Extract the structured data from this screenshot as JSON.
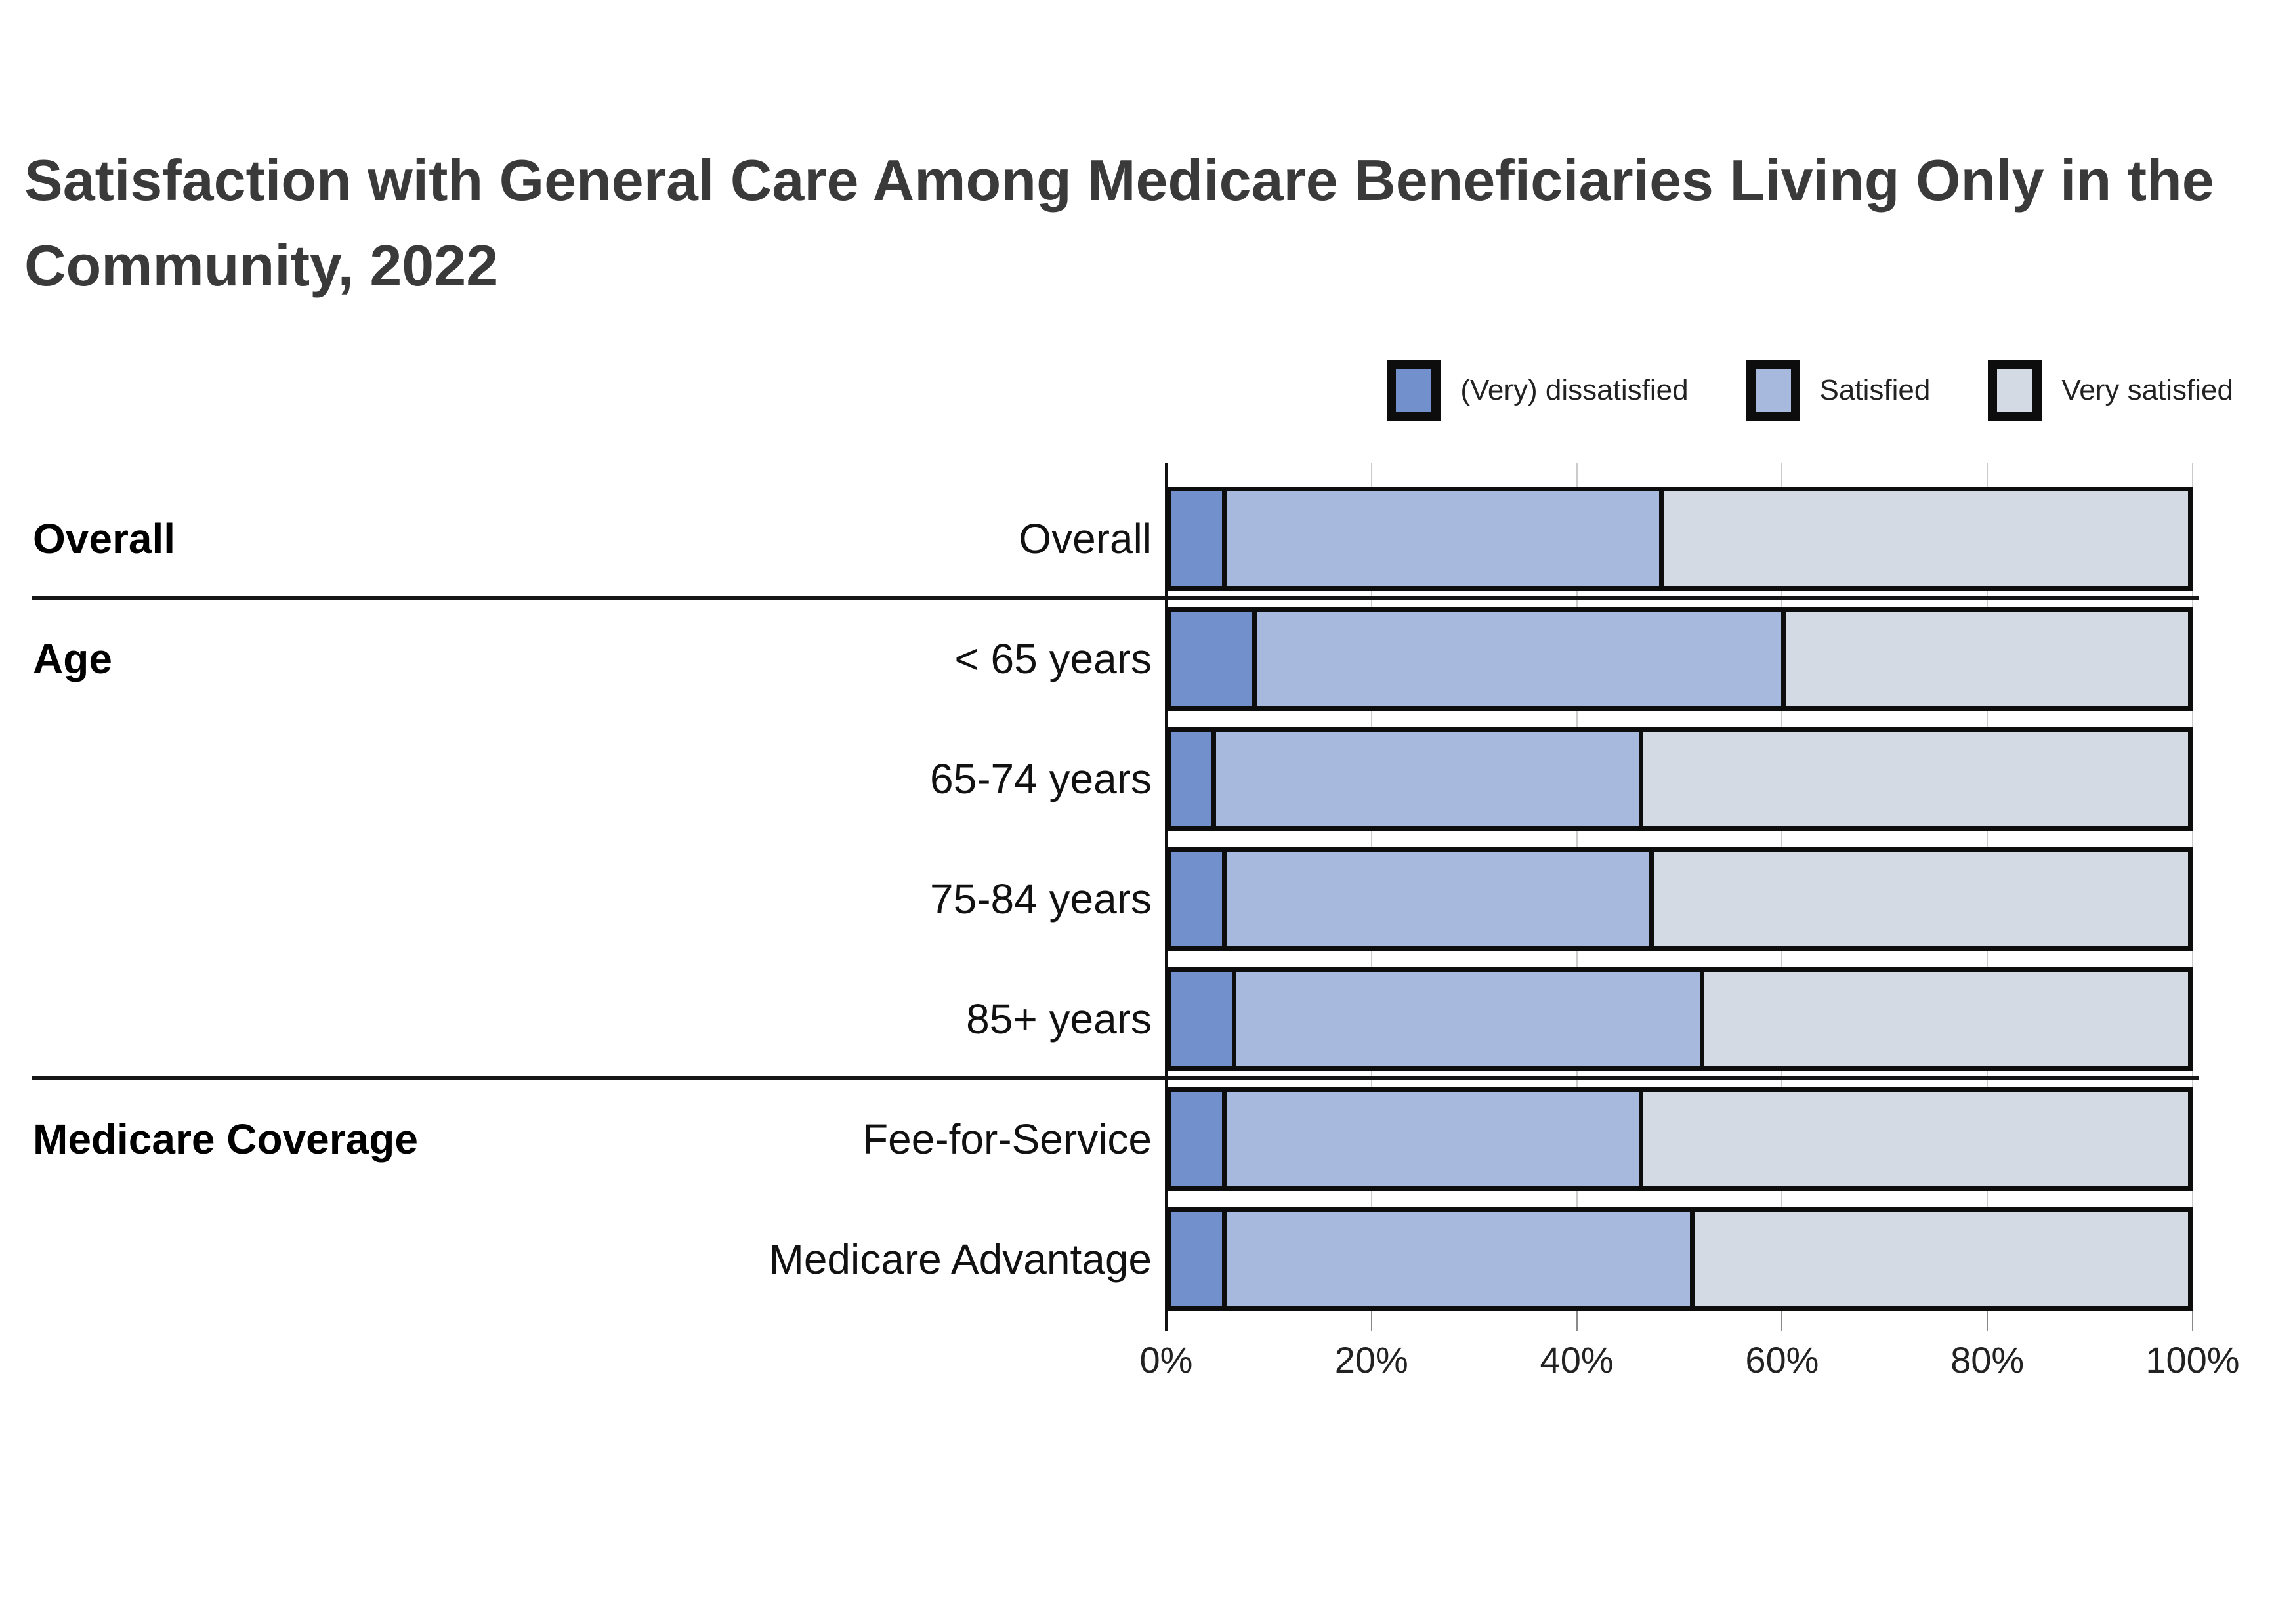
{
  "title": "Satisfaction with General Care Among Medicare Beneficiaries Living Only in the Community, 2022",
  "legend": [
    {
      "label": "(Very) dissatisfied",
      "color": "#7291CC"
    },
    {
      "label": "Satisfied",
      "color": "#A7B9DC"
    },
    {
      "label": "Very satisfied",
      "color": "#D4DAE4"
    }
  ],
  "chart_data": {
    "type": "bar",
    "stacked": true,
    "orientation": "horizontal",
    "unit": "percent",
    "title": "Satisfaction with General Care Among Medicare Beneficiaries Living Only in the Community, 2022",
    "xlim": [
      0,
      100
    ],
    "x_ticks": [
      "0%",
      "20%",
      "40%",
      "60%",
      "80%",
      "100%"
    ],
    "grid": true,
    "legend_position": "top-right",
    "series_names": [
      "(Very) dissatisfied",
      "Satisfied",
      "Very satisfied"
    ],
    "groups": [
      {
        "label": "Overall",
        "rows": [
          {
            "label": "Overall",
            "values": [
              5,
              43,
              52
            ]
          }
        ]
      },
      {
        "label": "Age",
        "rows": [
          {
            "label": "< 65 years",
            "values": [
              8,
              52,
              40
            ]
          },
          {
            "label": "65-74 years",
            "values": [
              4,
              42,
              54
            ]
          },
          {
            "label": "75-84 years",
            "values": [
              5,
              42,
              53
            ]
          },
          {
            "label": "85+ years",
            "values": [
              6,
              46,
              48
            ]
          }
        ]
      },
      {
        "label": "Medicare Coverage",
        "rows": [
          {
            "label": "Fee-for-Service",
            "values": [
              5,
              41,
              54
            ]
          },
          {
            "label": "Medicare Advantage",
            "values": [
              5,
              46,
              49
            ]
          }
        ]
      }
    ]
  },
  "colors": {
    "segment_border": "#0d0d0d",
    "gridline": "#cbcbcb",
    "axis": "#111111",
    "separator": "#161616",
    "title_text": "#3a3a3a",
    "label_text": "#111111",
    "tick_text": "#222222"
  }
}
